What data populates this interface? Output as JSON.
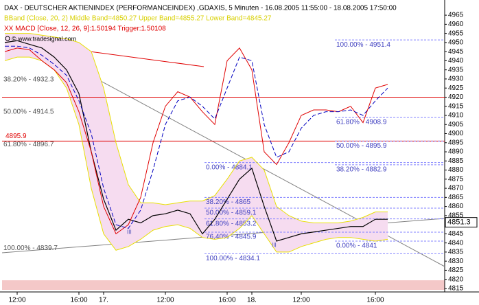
{
  "chart_data": {
    "type": "line",
    "title": "DAX - DEUTSCHER AKTIENINDEX (PERFORMANCEINDEX) ,GDAXIS, 5 Minuten - 16.08.2005 11:55:00 - 18.08.2005 17:50:00",
    "subtitle": "BBand (Close, 20, 2) Middle Band=4850.27 Upper Band=4855.27 Lower Band=4845.27",
    "indicator_label": "XX MACD [Close, 12, 26, 9]:1.50194 Trigger:1.50108",
    "watermark": "© www.tradesignal.com",
    "categories": [
      null,
      "12:00",
      null,
      null,
      null,
      null,
      "16:00",
      null,
      "17.",
      null,
      null,
      null,
      null,
      "12:00",
      null,
      null,
      null,
      null,
      "16:00",
      null,
      "18.",
      null,
      null,
      null,
      "12:00",
      null,
      null,
      null,
      null,
      null,
      "16:00",
      null
    ],
    "series": [
      {
        "color": "#000000",
        "values": [
          4950,
          4951,
          4949,
          4947,
          4942,
          4935,
          4922,
          4890,
          4864,
          4847,
          4853,
          4851,
          4855,
          4856,
          4858,
          4856,
          4845,
          4853,
          4864,
          4875,
          4881,
          4860,
          4841,
          4843,
          4845,
          4846,
          4847,
          4848,
          4849,
          4849,
          4853,
          4853
        ]
      },
      {
        "color": "#e8e000",
        "values": [
          4955,
          4955,
          4955,
          4954,
          4953,
          4952,
          4950,
          4945,
          4925,
          4895,
          4872,
          4862,
          4862,
          4861,
          4862,
          4863,
          4863,
          4866,
          4875,
          4885,
          4887,
          4880,
          4860,
          4855,
          4852,
          4851,
          4851,
          4851,
          4852,
          4854,
          4857,
          4857
        ]
      },
      {
        "color": "#e8e000",
        "values": [
          4940,
          4942,
          4942,
          4940,
          4935,
          4925,
          4905,
          4870,
          4845,
          4836,
          4838,
          4842,
          4847,
          4849,
          4850,
          4848,
          4843,
          4842,
          4843,
          4848,
          4855,
          4845,
          4835,
          4835,
          4838,
          4840,
          4842,
          4843,
          4843,
          4842,
          4841,
          4842
        ]
      },
      {
        "color": "#e00000",
        "values": [
          4945,
          4947,
          4946,
          4940,
          4935,
          4928,
          4912,
          4890,
          4860,
          4845,
          4850,
          4865,
          4895,
          4915,
          4923,
          4920,
          4912,
          4905,
          4940,
          4947,
          4935,
          4890,
          4883,
          4895,
          4910,
          4913,
          4913,
          4912,
          4915,
          4906,
          4925,
          4927
        ]
      },
      {
        "color": "#0000c0",
        "dashed": true,
        "values": [
          4948,
          4948,
          4947,
          4943,
          4938,
          4932,
          4918,
          4900,
          4870,
          4850,
          4848,
          4858,
          4880,
          4905,
          4918,
          4920,
          4915,
          4908,
          4925,
          4942,
          4940,
          4905,
          4887,
          4890,
          4903,
          4910,
          4912,
          4912,
          4913,
          4910,
          4918,
          4925
        ]
      }
    ],
    "band_fill": "#f6dcf0",
    "ylim": [
      4813.1,
      4972.2
    ],
    "yticks": [
      4815,
      4820,
      4825,
      4830,
      4835,
      4840,
      4845,
      4850,
      4855,
      4860,
      4865,
      4870,
      4875,
      4880,
      4885,
      4890,
      4895,
      4900,
      4905,
      4910,
      4915,
      4920,
      4925,
      4930,
      4935,
      4940,
      4945,
      4950,
      4955,
      4960,
      4965
    ],
    "last_value": 4851.3,
    "hlines": [
      {
        "value": 4920
      },
      {
        "value": 4895.9,
        "label": "4895.9"
      }
    ],
    "annotations": [
      {
        "value": 4951.4,
        "label": "100.00% - 4951.4"
      },
      {
        "value": 4908.9,
        "label": "61.80% - 4908.9"
      },
      {
        "value": 4895.9,
        "label": "50.00% - 4895.9"
      },
      {
        "value": 4882.9,
        "label": "38.20% - 4882.9"
      },
      {
        "value": 4884.1,
        "label": "0.00% - 4884.1"
      },
      {
        "value": 4865,
        "label": "38.20% - 4865"
      },
      {
        "value": 4859.1,
        "label": "50.00% - 4859.1"
      },
      {
        "value": 4853.2,
        "label": "61.80% - 4853.2"
      },
      {
        "value": 4845.9,
        "label": "76.40% - 4845.9"
      },
      {
        "value": 4834.1,
        "label": "100.00% - 4834.1"
      },
      {
        "value": 4841,
        "label": "0.00% - 4841"
      },
      {
        "value": 4932.3,
        "label": "38.20% - 4932.3"
      },
      {
        "value": 4914.5,
        "label": "50.00% - 4914.5"
      },
      {
        "value": 4896.7,
        "label": "61.80% - 4896.7"
      },
      {
        "value": 4839.7,
        "label": "100.00% - 4839.7"
      }
    ],
    "wave_labels": [
      "iii",
      "iii"
    ]
  }
}
